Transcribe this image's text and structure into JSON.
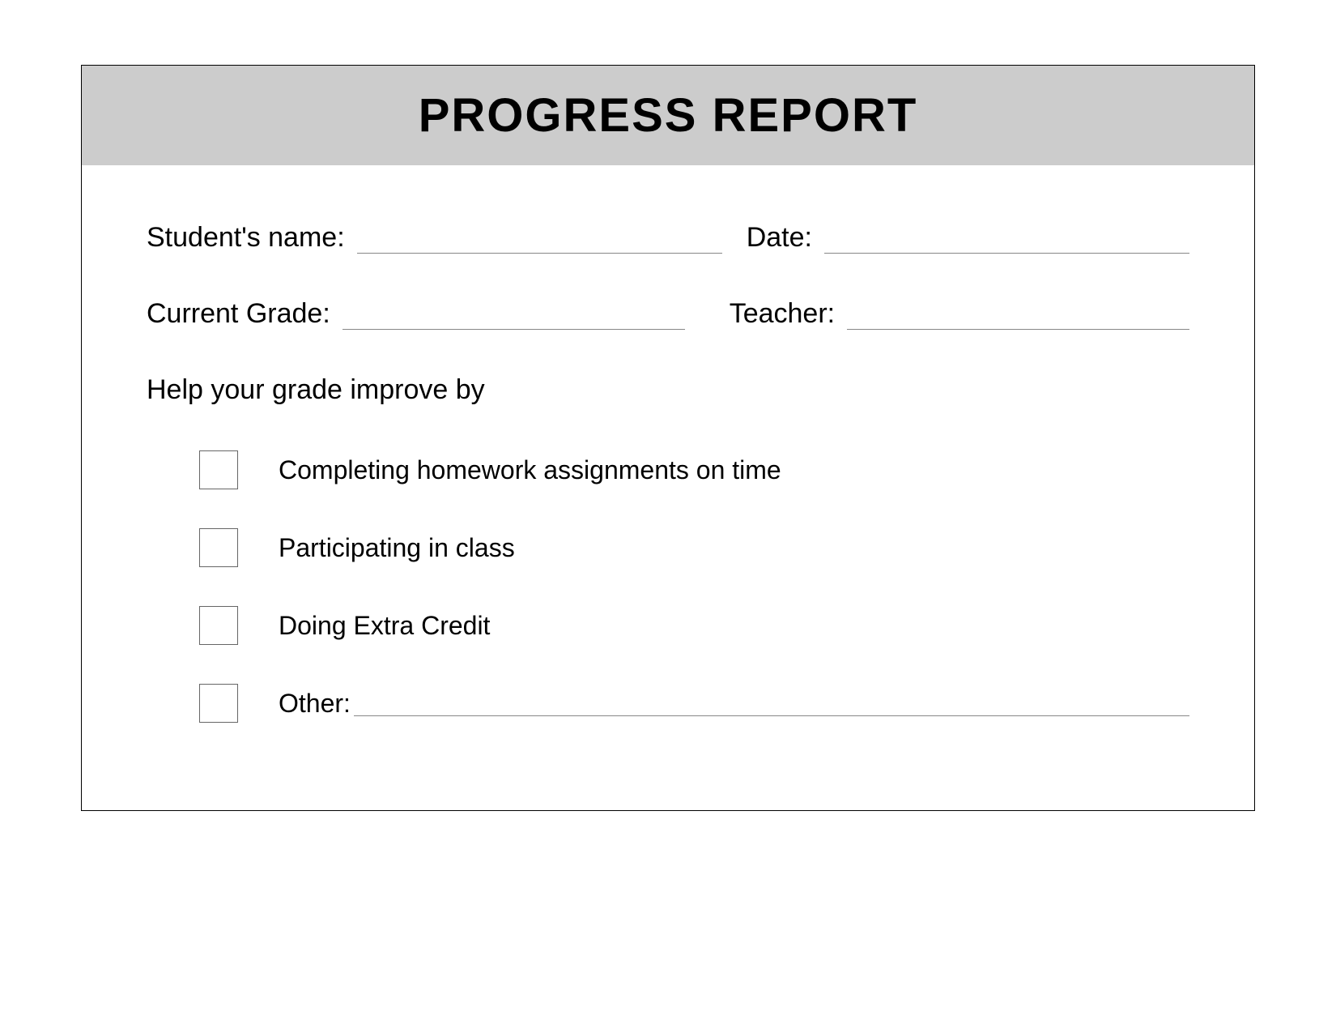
{
  "header": {
    "title": "PROGRESS REPORT",
    "background_color": "#cccccc",
    "title_color": "#000000",
    "title_fontsize": 58,
    "title_weight": 900
  },
  "fields": {
    "student_name_label": "Student's name:",
    "date_label": "Date:",
    "current_grade_label": "Current Grade:",
    "teacher_label": "Teacher:",
    "student_name_value": "",
    "date_value": "",
    "current_grade_value": "",
    "teacher_value": ""
  },
  "instruction": "Help your grade improve by",
  "checklist": [
    {
      "label": "Completing homework assignments on time",
      "checked": false
    },
    {
      "label": "Participating in class",
      "checked": false
    },
    {
      "label": "Doing Extra Credit",
      "checked": false
    },
    {
      "label": "Other:",
      "checked": false,
      "has_line": true
    }
  ],
  "styling": {
    "page_background": "#ffffff",
    "border_color": "#000000",
    "underline_color": "#888888",
    "checkbox_border": "#666666",
    "body_fontsize": 34,
    "checklist_fontsize": 32,
    "font_family": "Verdana"
  }
}
